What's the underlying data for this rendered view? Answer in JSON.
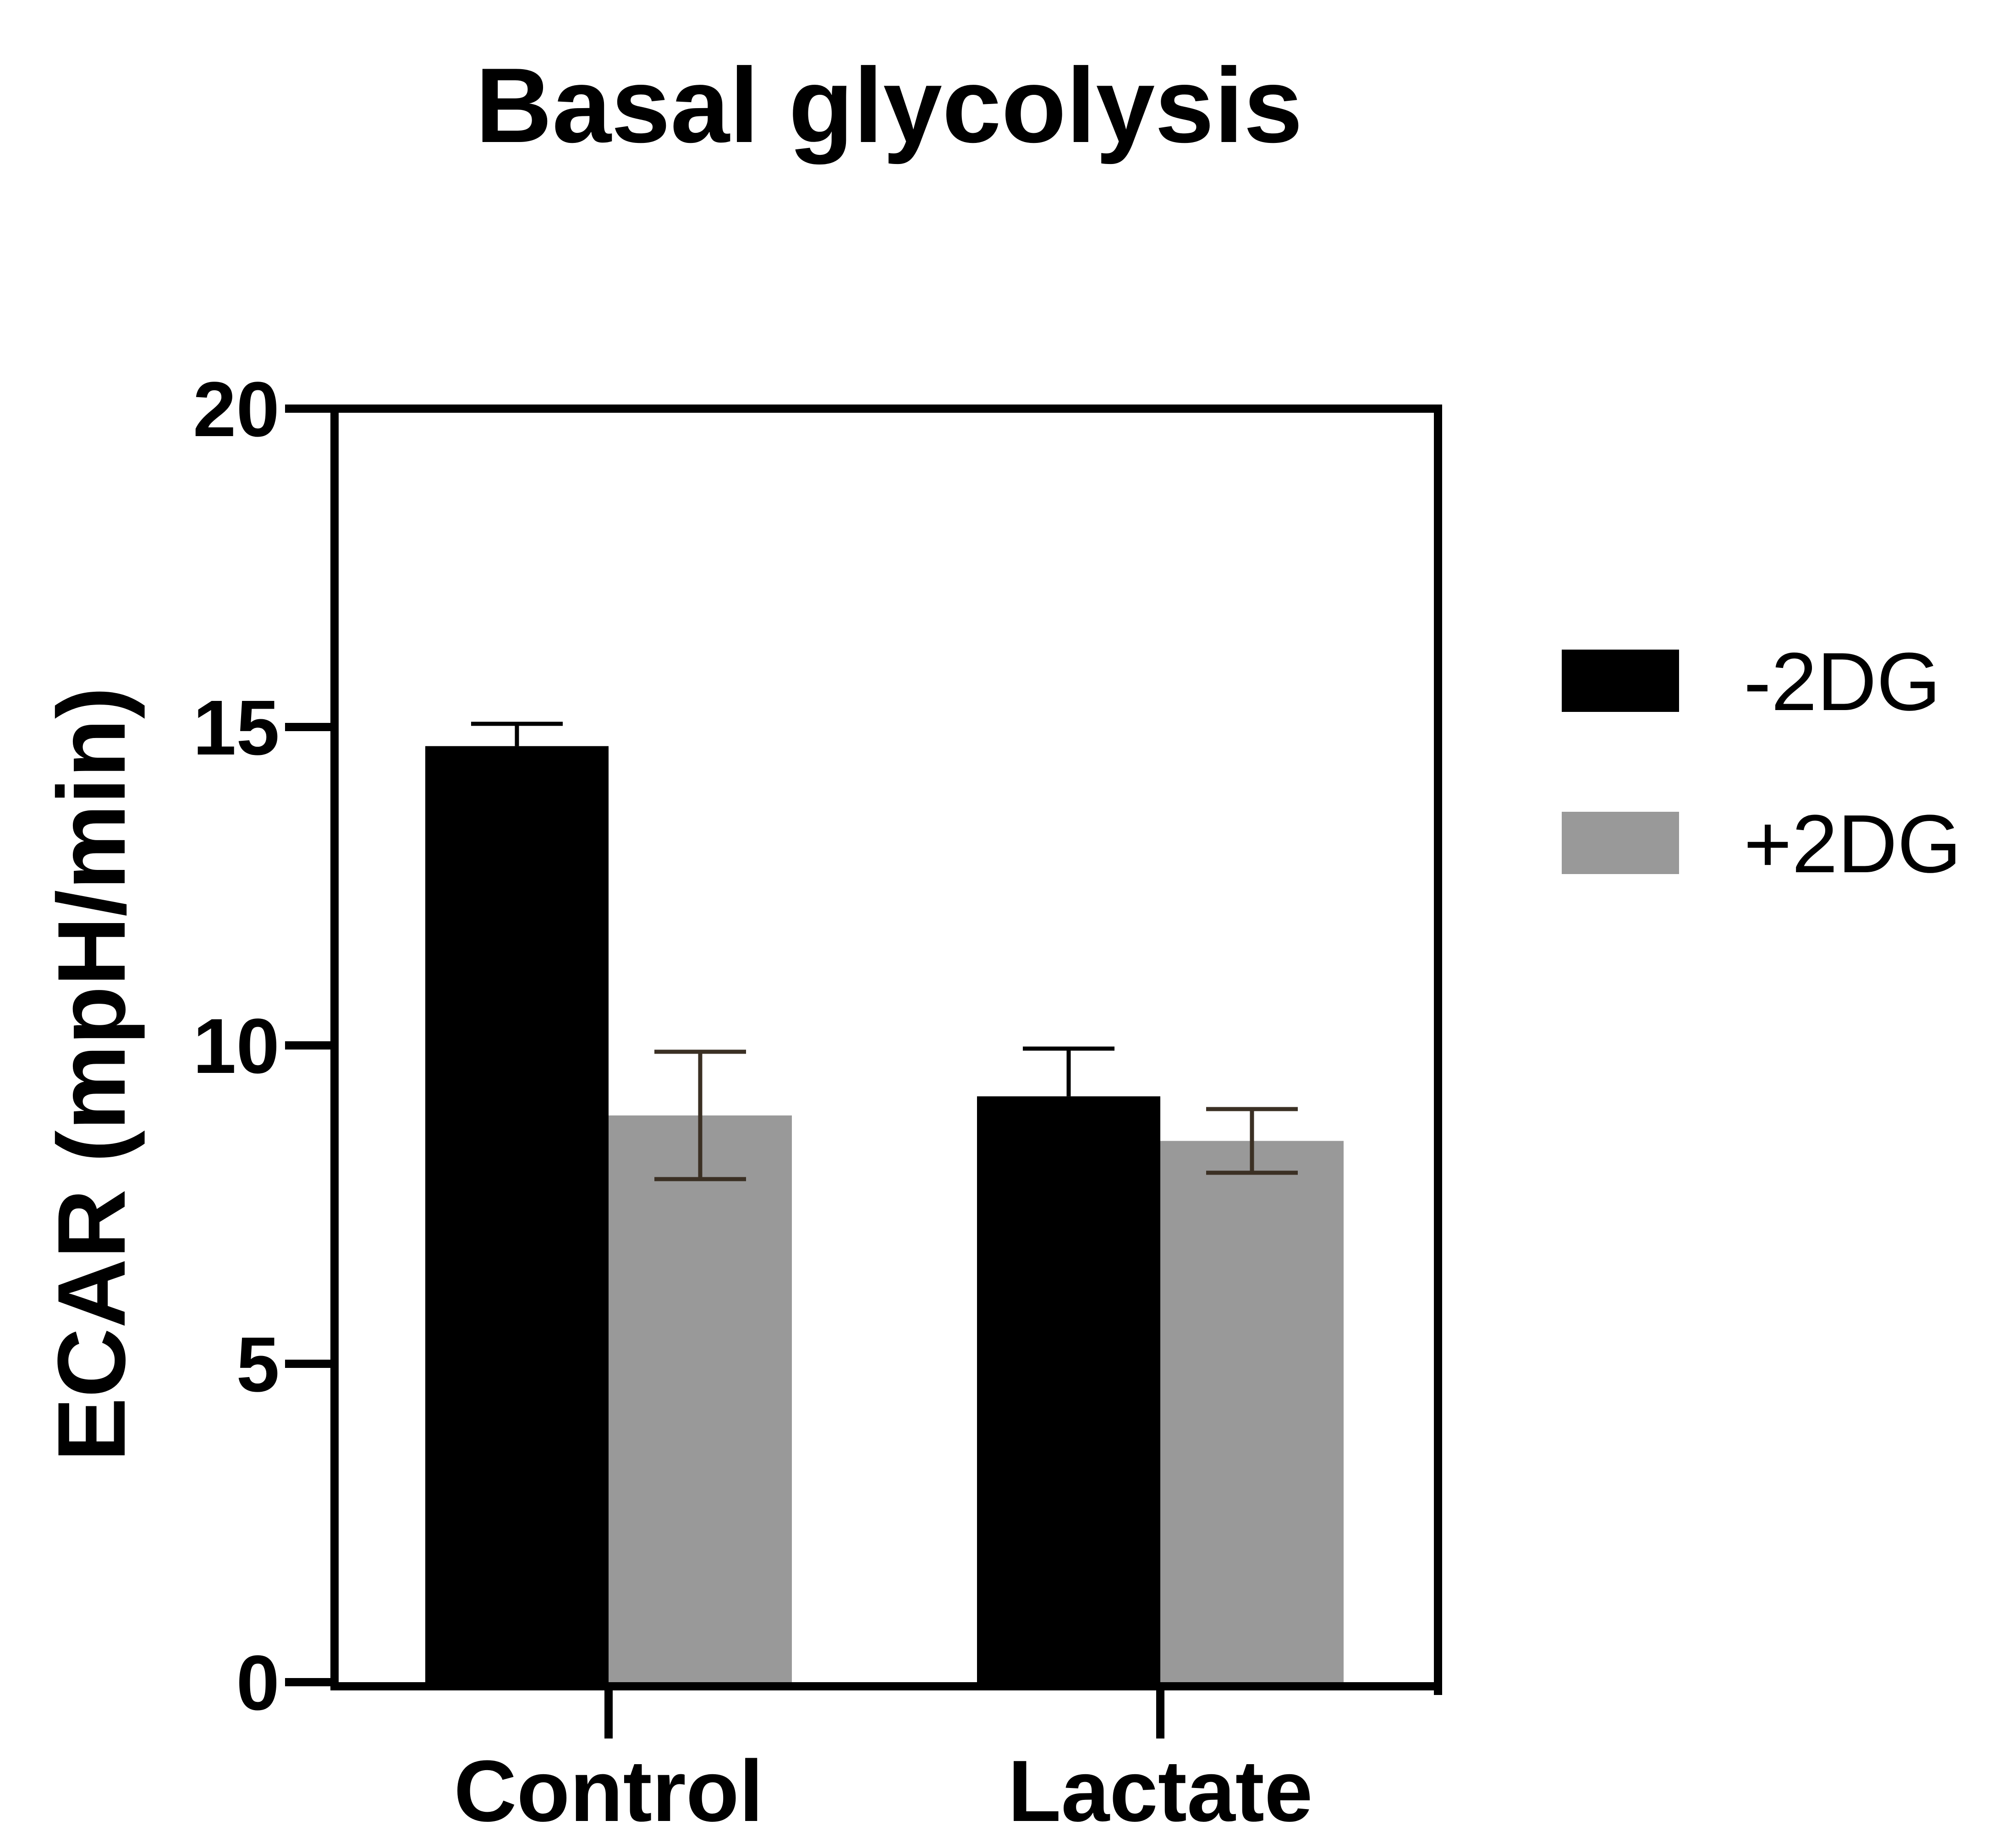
{
  "chart_data": {
    "type": "bar",
    "title": "Basal glycolysis",
    "xlabel": "",
    "ylabel": "ECAR (mpH/min)",
    "ylim": [
      0,
      20
    ],
    "yticks": [
      0,
      5,
      10,
      15,
      20
    ],
    "categories": [
      "Control",
      "Lactate"
    ],
    "series": [
      {
        "name": "-2DG",
        "values": [
          14.7,
          9.2
        ],
        "errors": [
          0.35,
          0.75
        ],
        "color": "#000000",
        "error_color": "#000000"
      },
      {
        "name": "+2DG",
        "values": [
          8.9,
          8.5
        ],
        "errors": [
          1.0,
          0.5
        ],
        "color": "#999999",
        "error_color": "#3b3024"
      }
    ],
    "legend_position": "right",
    "grid": false
  }
}
